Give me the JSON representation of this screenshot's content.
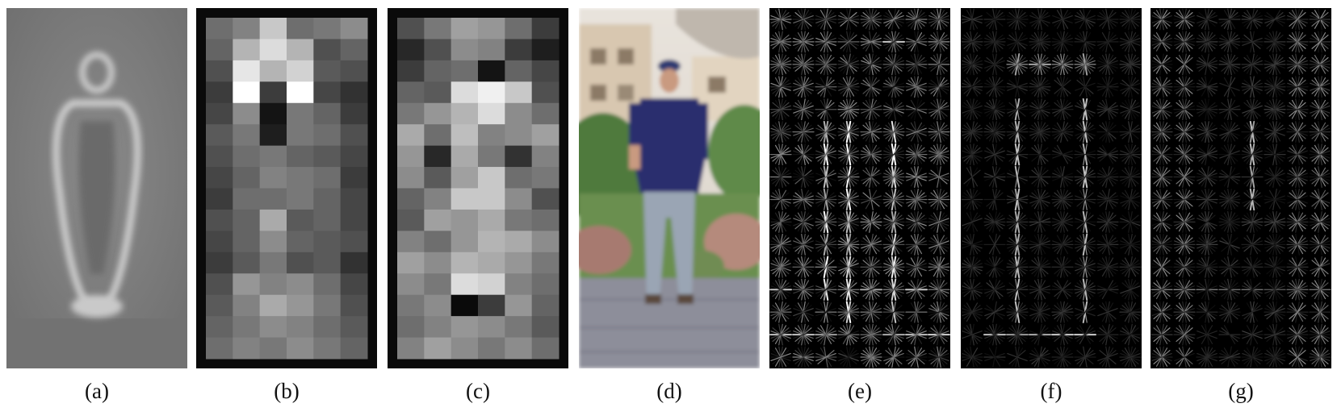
{
  "panels": [
    {
      "id": "a",
      "caption": "(a)",
      "kind": "average-gradient"
    },
    {
      "id": "b",
      "caption": "(b)",
      "kind": "positive-weight-grid"
    },
    {
      "id": "c",
      "caption": "(c)",
      "kind": "negative-weight-grid"
    },
    {
      "id": "d",
      "caption": "(d)",
      "kind": "pedestrian-photo"
    },
    {
      "id": "e",
      "caption": "(e)",
      "kind": "hog-descriptor"
    },
    {
      "id": "f",
      "caption": "(f)",
      "kind": "hog-positive-weighted"
    },
    {
      "id": "g",
      "caption": "(g)",
      "kind": "hog-negative-weighted"
    }
  ],
  "grid_b": [
    [
      110,
      130,
      200,
      110,
      120,
      140
    ],
    [
      100,
      180,
      220,
      180,
      80,
      100
    ],
    [
      80,
      230,
      180,
      210,
      90,
      80
    ],
    [
      60,
      255,
      60,
      255,
      70,
      50
    ],
    [
      70,
      140,
      20,
      120,
      100,
      60
    ],
    [
      90,
      120,
      30,
      120,
      110,
      80
    ],
    [
      80,
      110,
      120,
      100,
      90,
      70
    ],
    [
      70,
      100,
      130,
      120,
      110,
      60
    ],
    [
      60,
      110,
      110,
      120,
      100,
      70
    ],
    [
      80,
      100,
      170,
      90,
      100,
      70
    ],
    [
      70,
      100,
      140,
      100,
      90,
      80
    ],
    [
      60,
      90,
      120,
      80,
      90,
      50
    ],
    [
      80,
      150,
      130,
      140,
      110,
      70
    ],
    [
      90,
      130,
      170,
      150,
      120,
      80
    ],
    [
      100,
      120,
      140,
      130,
      110,
      90
    ],
    [
      110,
      130,
      120,
      140,
      120,
      100
    ]
  ],
  "grid_c": [
    [
      80,
      120,
      160,
      150,
      110,
      60
    ],
    [
      40,
      80,
      140,
      130,
      60,
      30
    ],
    [
      60,
      100,
      110,
      20,
      100,
      70
    ],
    [
      100,
      90,
      220,
      240,
      200,
      80
    ],
    [
      120,
      150,
      180,
      220,
      140,
      110
    ],
    [
      170,
      110,
      190,
      130,
      140,
      160
    ],
    [
      150,
      40,
      170,
      120,
      50,
      130
    ],
    [
      140,
      90,
      160,
      200,
      110,
      120
    ],
    [
      100,
      130,
      200,
      200,
      140,
      80
    ],
    [
      90,
      160,
      150,
      170,
      120,
      110
    ],
    [
      130,
      110,
      150,
      180,
      170,
      140
    ],
    [
      160,
      140,
      180,
      170,
      150,
      120
    ],
    [
      140,
      120,
      220,
      210,
      130,
      110
    ],
    [
      120,
      140,
      10,
      60,
      150,
      100
    ],
    [
      110,
      130,
      150,
      140,
      120,
      90
    ],
    [
      130,
      160,
      140,
      120,
      140,
      110
    ]
  ],
  "colors": {
    "dark_frame": "#0a0a0a",
    "photo_shirt": "#2a2f6e",
    "photo_jeans": "#9aa5b4",
    "photo_foliage": "#5f8a4a",
    "photo_pavement": "#8d8e9a"
  }
}
